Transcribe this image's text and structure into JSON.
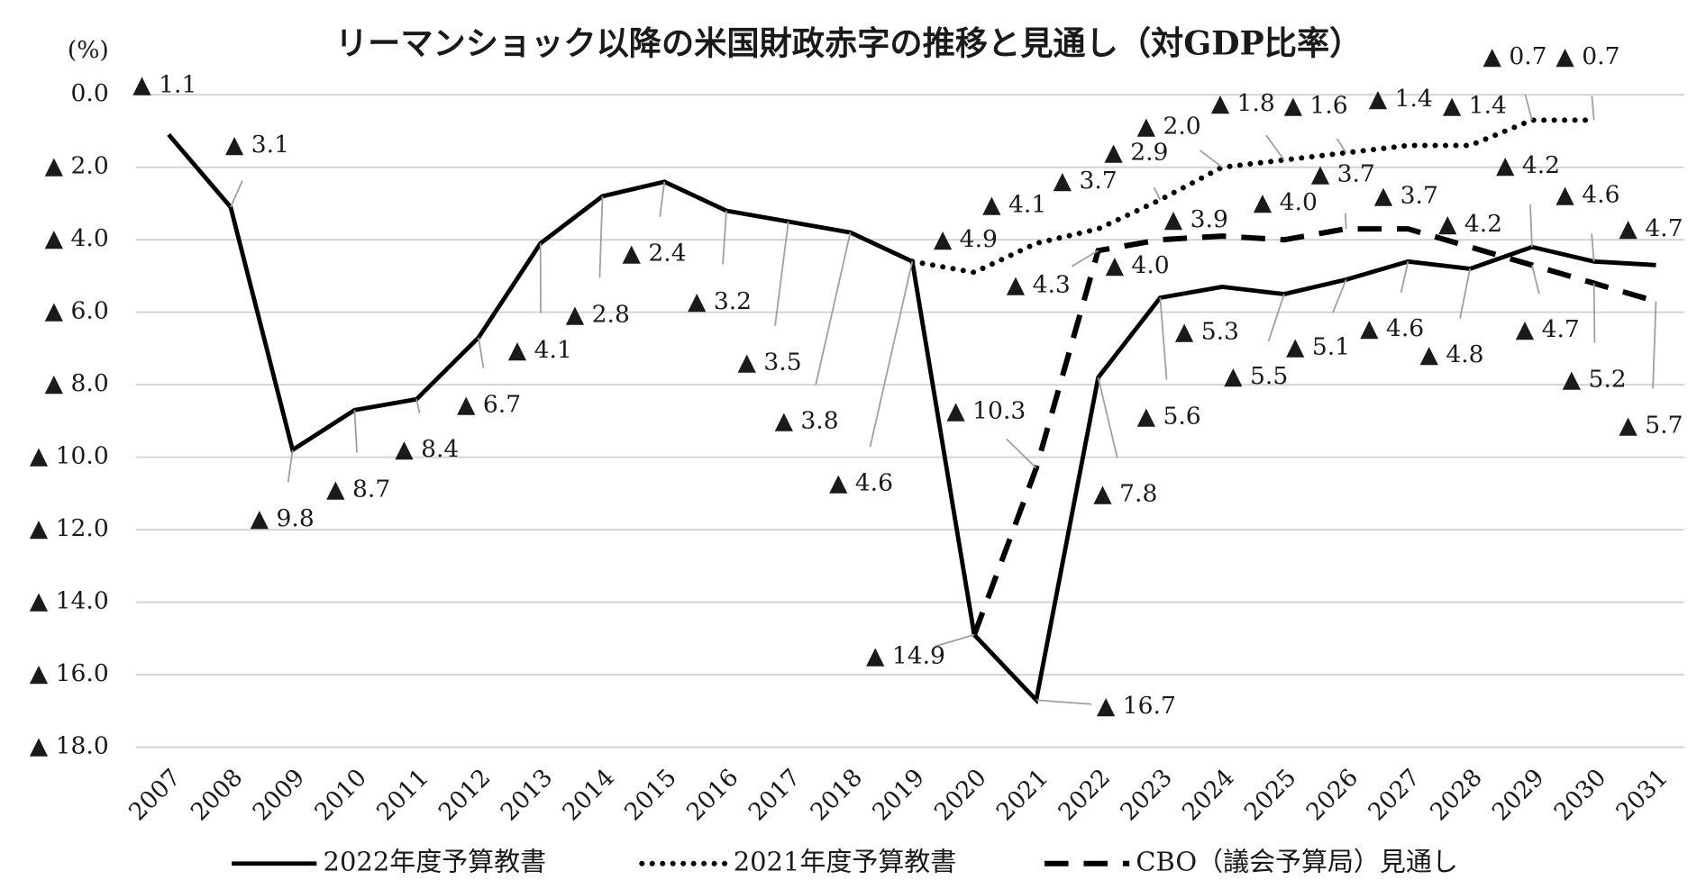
{
  "chart_data": {
    "type": "line",
    "title": "リーマンショック以降の米国財政赤字の推移と見通し（対GDP比率）",
    "y_label": "(%)",
    "categories": [
      "2007",
      "2008",
      "2009",
      "2010",
      "2011",
      "2012",
      "2013",
      "2014",
      "2015",
      "2016",
      "2017",
      "2018",
      "2019",
      "2020",
      "2021",
      "2022",
      "2023",
      "2024",
      "2025",
      "2026",
      "2027",
      "2028",
      "2029",
      "2030",
      "2031"
    ],
    "ylim": [
      -18,
      0
    ],
    "yticks": [
      {
        "value": 0,
        "label": "0.0"
      },
      {
        "value": -2,
        "label": "▲ 2.0"
      },
      {
        "value": -4,
        "label": "▲ 4.0"
      },
      {
        "value": -6,
        "label": "▲ 6.0"
      },
      {
        "value": -8,
        "label": "▲ 8.0"
      },
      {
        "value": -10,
        "label": "▲ 10.0"
      },
      {
        "value": -12,
        "label": "▲ 12.0"
      },
      {
        "value": -14,
        "label": "▲ 14.0"
      },
      {
        "value": -16,
        "label": "▲ 16.0"
      },
      {
        "value": -18,
        "label": "▲ 18.0"
      }
    ],
    "grid": true,
    "legend": "bottom",
    "series": [
      {
        "name": "2022年度予算教書",
        "color": "#000000",
        "line_style": "solid",
        "values": [
          -1.1,
          -3.1,
          -9.8,
          -8.7,
          -8.4,
          -6.7,
          -4.1,
          -2.8,
          -2.4,
          -3.2,
          -3.5,
          -3.8,
          -4.6,
          -14.9,
          -16.7,
          -7.8,
          -5.6,
          -5.3,
          -5.5,
          -5.1,
          -4.6,
          -4.8,
          -4.2,
          -4.6,
          -4.7
        ],
        "value_labels": [
          "▲ 1.1",
          "▲ 3.1",
          "▲ 9.8",
          "▲ 8.7",
          "▲ 8.4",
          "▲ 6.7",
          "▲ 4.1",
          "▲ 2.8",
          "▲ 2.4",
          "▲ 3.2",
          "▲ 3.5",
          "▲ 3.8",
          "▲ 4.6",
          "▲ 14.9",
          "▲ 16.7",
          "▲ 7.8",
          "▲ 5.6",
          "▲ 5.3",
          "▲ 5.5",
          "▲ 5.1",
          "▲ 4.6",
          "▲ 4.8",
          "▲ 4.2",
          "▲ 4.6",
          "▲ 4.7"
        ]
      },
      {
        "name": "2021年度予算教書",
        "color": "#000000",
        "line_style": "dotted",
        "values": [
          null,
          null,
          null,
          null,
          null,
          null,
          null,
          null,
          null,
          null,
          null,
          null,
          -4.6,
          -4.9,
          -4.1,
          -3.7,
          -2.9,
          -2.0,
          -1.8,
          -1.6,
          -1.4,
          -1.4,
          -0.7,
          -0.7,
          null
        ],
        "value_labels": [
          null,
          null,
          null,
          null,
          null,
          null,
          null,
          null,
          null,
          null,
          null,
          null,
          null,
          "▲ 4.9",
          "▲ 4.1",
          "▲ 3.7",
          "▲ 2.9",
          "▲ 2.0",
          "▲ 1.8",
          "▲ 1.6",
          "▲ 1.4",
          "▲ 1.4",
          "▲ 0.7",
          "▲ 0.7",
          null
        ]
      },
      {
        "name": "CBO（議会予算局）見通し",
        "color": "#000000",
        "line_style": "dashed",
        "values": [
          null,
          null,
          null,
          null,
          null,
          null,
          null,
          null,
          null,
          null,
          null,
          null,
          null,
          -14.9,
          -10.3,
          -4.3,
          -4.0,
          -3.9,
          -4.0,
          -3.7,
          -3.7,
          -4.2,
          -4.7,
          -5.2,
          -5.7
        ],
        "value_labels": [
          null,
          null,
          null,
          null,
          null,
          null,
          null,
          null,
          null,
          null,
          null,
          null,
          null,
          null,
          "▲ 10.3",
          "▲ 4.3",
          "▲ 4.0",
          "▲ 3.9",
          "▲ 4.0",
          "▲ 3.7",
          "▲ 3.7",
          "▲ 4.2",
          "▲ 4.7",
          "▲ 5.2",
          "▲ 5.7"
        ]
      }
    ]
  }
}
